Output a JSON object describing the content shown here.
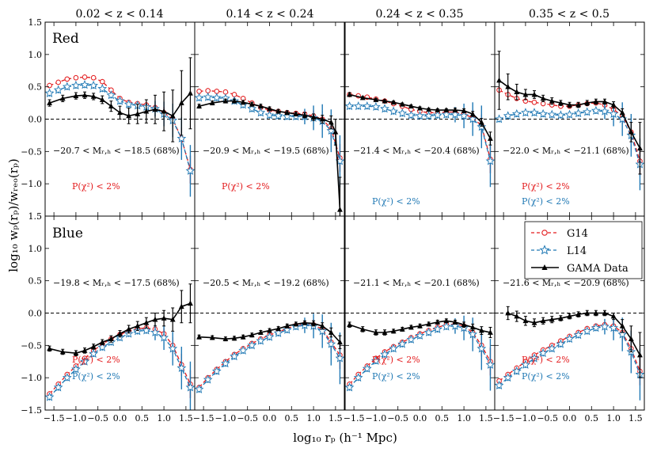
{
  "figure": {
    "xlabel": "log₁₀ rₚ (h⁻¹ Mpc)",
    "ylabel": "log₁₀ wₚ(rₚ)/wᵣₑₒ(rₚ)"
  },
  "columns": [
    "0.02 < z < 0.14",
    "0.14 < z < 0.24",
    "0.24 < z < 0.35",
    "0.35 < z < 0.5"
  ],
  "rows": [
    "Red",
    "Blue"
  ],
  "legend": {
    "g14": "G14",
    "l14": "L14",
    "gama": "GAMA Data"
  },
  "colors": {
    "g14": "#e31a1c",
    "l14": "#1f78b4",
    "gama": "#000000"
  },
  "panels_text": [
    {
      "row": 0,
      "col": 0,
      "mag": "−20.7 < Mᵣ,ₕ < −18.5 (68%)",
      "pchi_red": "P(χ²) < 2%",
      "pchi_blue": ""
    },
    {
      "row": 0,
      "col": 1,
      "mag": "−20.9 < Mᵣ,ₕ < −19.5 (68%)",
      "pchi_red": "P(χ²) < 2%",
      "pchi_blue": ""
    },
    {
      "row": 0,
      "col": 2,
      "mag": "−21.4 < Mᵣ,ₕ < −20.4 (68%)",
      "pchi_red": "",
      "pchi_blue": "P(χ²) < 2%"
    },
    {
      "row": 0,
      "col": 3,
      "mag": "−22.0 < Mᵣ,ₕ < −21.1 (68%)",
      "pchi_red": "P(χ²) < 2%",
      "pchi_blue": "P(χ²) < 2%"
    },
    {
      "row": 1,
      "col": 0,
      "mag": "−19.8 < Mᵣ,ₕ < −17.5 (68%)",
      "pchi_red": "P(χ²) < 2%",
      "pchi_blue": "P(χ²) < 2%"
    },
    {
      "row": 1,
      "col": 1,
      "mag": "−20.5 < Mᵣ,ₕ < −19.2 (68%)",
      "pchi_red": "",
      "pchi_blue": ""
    },
    {
      "row": 1,
      "col": 2,
      "mag": "−21.1 < Mᵣ,ₕ < −20.1 (68%)",
      "pchi_red": "P(χ²) < 2%",
      "pchi_blue": "P(χ²) < 2%"
    },
    {
      "row": 1,
      "col": 3,
      "mag": "−21.6 < Mᵣ,ₕ < −20.9 (68%)",
      "pchi_red": "P(χ²) < 2%",
      "pchi_blue": "P(χ²) < 2%"
    }
  ],
  "chart_data": {
    "type": "line",
    "xlim": [
      -1.7,
      1.7
    ],
    "ylim": [
      -1.5,
      1.5
    ],
    "xticks": [
      -1.5,
      -1.0,
      -0.5,
      0.0,
      0.5,
      1.0,
      1.5
    ],
    "xtick_labels": [
      "−1.5",
      "−1.0",
      "−0.5",
      "0.0",
      "0.5",
      "1.0",
      "1.5"
    ],
    "yticks": [
      -1.5,
      -1.0,
      -0.5,
      0.0,
      0.5,
      1.0,
      1.5
    ],
    "ytick_labels": [
      "−1.5",
      "−1.0",
      "−0.5",
      "0.0",
      "0.5",
      "1.0",
      "1.5"
    ],
    "reference_line": 0.0,
    "model_x": [
      -1.6,
      -1.4,
      -1.2,
      -1.0,
      -0.8,
      -0.6,
      -0.4,
      -0.2,
      0.0,
      0.2,
      0.4,
      0.6,
      0.8,
      1.0,
      1.2,
      1.4,
      1.6
    ],
    "panels": [
      {
        "row": 0,
        "col": 0,
        "G14": [
          0.52,
          0.57,
          0.62,
          0.64,
          0.65,
          0.64,
          0.58,
          0.45,
          0.32,
          0.26,
          0.24,
          0.22,
          0.18,
          0.1,
          0.0,
          -0.3,
          -0.78
        ],
        "L14": [
          0.4,
          0.45,
          0.5,
          0.52,
          0.53,
          0.52,
          0.47,
          0.37,
          0.28,
          0.23,
          0.21,
          0.19,
          0.16,
          0.08,
          -0.02,
          -0.3,
          -0.8
        ],
        "GAMA": {
          "x": [
            -1.6,
            -1.3,
            -1.0,
            -0.8,
            -0.6,
            -0.4,
            -0.2,
            0.0,
            0.2,
            0.4,
            0.6,
            0.8,
            1.0,
            1.2,
            1.4,
            1.6
          ],
          "y": [
            0.25,
            0.32,
            0.36,
            0.37,
            0.35,
            0.3,
            0.2,
            0.1,
            0.05,
            0.08,
            0.12,
            0.15,
            0.12,
            0.05,
            0.25,
            0.4
          ],
          "err": [
            0.05,
            0.05,
            0.05,
            0.05,
            0.05,
            0.06,
            0.08,
            0.1,
            0.12,
            0.15,
            0.18,
            0.22,
            0.3,
            0.4,
            0.5,
            0.55
          ]
        }
      },
      {
        "row": 0,
        "col": 1,
        "G14": [
          0.43,
          0.44,
          0.43,
          0.42,
          0.38,
          0.32,
          0.25,
          0.18,
          0.14,
          0.12,
          0.1,
          0.09,
          0.08,
          0.05,
          0.0,
          -0.15,
          -0.6
        ],
        "L14": [
          0.33,
          0.34,
          0.33,
          0.32,
          0.28,
          0.22,
          0.16,
          0.1,
          0.06,
          0.05,
          0.04,
          0.04,
          0.04,
          0.02,
          -0.03,
          -0.18,
          -0.65
        ],
        "GAMA": {
          "x": [
            -1.6,
            -1.3,
            -1.0,
            -0.8,
            -0.6,
            -0.4,
            -0.2,
            0.0,
            0.2,
            0.4,
            0.6,
            0.8,
            1.0,
            1.2,
            1.4,
            1.5,
            1.6
          ],
          "y": [
            0.2,
            0.25,
            0.28,
            0.28,
            0.26,
            0.23,
            0.2,
            0.16,
            0.12,
            0.1,
            0.08,
            0.06,
            0.03,
            0.0,
            -0.05,
            -0.2,
            -1.4
          ],
          "err": [
            0.03,
            0.03,
            0.03,
            0.03,
            0.03,
            0.03,
            0.03,
            0.03,
            0.03,
            0.03,
            0.03,
            0.04,
            0.05,
            0.06,
            0.1,
            0.2,
            0.5
          ]
        }
      },
      {
        "row": 0,
        "col": 2,
        "G14": [
          0.38,
          0.36,
          0.34,
          0.31,
          0.28,
          0.24,
          0.2,
          0.15,
          0.12,
          0.1,
          0.1,
          0.11,
          0.11,
          0.08,
          0.02,
          -0.1,
          -0.62
        ],
        "L14": [
          0.2,
          0.2,
          0.2,
          0.19,
          0.16,
          0.12,
          0.09,
          0.06,
          0.05,
          0.05,
          0.06,
          0.07,
          0.07,
          0.05,
          0.0,
          -0.12,
          -0.65
        ],
        "GAMA": {
          "x": [
            -1.6,
            -1.3,
            -1.0,
            -0.8,
            -0.6,
            -0.4,
            -0.2,
            0.0,
            0.2,
            0.4,
            0.6,
            0.8,
            1.0,
            1.2,
            1.4,
            1.6
          ],
          "y": [
            0.38,
            0.33,
            0.3,
            0.28,
            0.26,
            0.23,
            0.2,
            0.17,
            0.15,
            0.14,
            0.14,
            0.14,
            0.13,
            0.08,
            -0.05,
            -0.3
          ],
          "err": [
            0.03,
            0.02,
            0.02,
            0.02,
            0.02,
            0.02,
            0.02,
            0.02,
            0.02,
            0.02,
            0.02,
            0.03,
            0.03,
            0.04,
            0.06,
            0.1
          ]
        }
      },
      {
        "row": 0,
        "col": 3,
        "G14": [
          0.45,
          0.38,
          0.32,
          0.28,
          0.26,
          0.24,
          0.22,
          0.2,
          0.2,
          0.22,
          0.24,
          0.25,
          0.22,
          0.15,
          0.05,
          -0.2,
          -0.65
        ],
        "L14": [
          0.0,
          0.05,
          0.08,
          0.1,
          0.1,
          0.08,
          0.07,
          0.06,
          0.07,
          0.09,
          0.11,
          0.13,
          0.12,
          0.08,
          0.0,
          -0.25,
          -0.7
        ],
        "GAMA": {
          "x": [
            -1.6,
            -1.4,
            -1.2,
            -1.0,
            -0.8,
            -0.6,
            -0.4,
            -0.2,
            0.0,
            0.2,
            0.4,
            0.6,
            0.8,
            1.0,
            1.2,
            1.4,
            1.6
          ],
          "y": [
            0.6,
            0.5,
            0.42,
            0.38,
            0.38,
            0.32,
            0.28,
            0.25,
            0.22,
            0.22,
            0.25,
            0.27,
            0.27,
            0.22,
            0.1,
            -0.2,
            -0.45
          ],
          "err": [
            0.45,
            0.2,
            0.12,
            0.08,
            0.06,
            0.05,
            0.05,
            0.04,
            0.04,
            0.04,
            0.04,
            0.04,
            0.04,
            0.05,
            0.06,
            0.15,
            0.4
          ]
        }
      },
      {
        "row": 1,
        "col": 0,
        "G14": [
          -1.25,
          -1.1,
          -0.95,
          -0.82,
          -0.7,
          -0.58,
          -0.48,
          -0.4,
          -0.33,
          -0.28,
          -0.24,
          -0.23,
          -0.25,
          -0.32,
          -0.5,
          -0.8,
          -1.1
        ],
        "L14": [
          -1.3,
          -1.15,
          -1.0,
          -0.87,
          -0.75,
          -0.63,
          -0.53,
          -0.45,
          -0.38,
          -0.32,
          -0.28,
          -0.27,
          -0.3,
          -0.38,
          -0.55,
          -0.85,
          -1.15
        ],
        "GAMA": {
          "x": [
            -1.6,
            -1.3,
            -1.0,
            -0.8,
            -0.6,
            -0.4,
            -0.2,
            0.0,
            0.2,
            0.4,
            0.6,
            0.8,
            1.0,
            1.2,
            1.4,
            1.6
          ],
          "y": [
            -0.55,
            -0.6,
            -0.62,
            -0.58,
            -0.52,
            -0.45,
            -0.4,
            -0.32,
            -0.25,
            -0.2,
            -0.15,
            -0.1,
            -0.08,
            -0.1,
            0.1,
            0.15
          ],
          "err": [
            0.04,
            0.04,
            0.04,
            0.04,
            0.04,
            0.04,
            0.05,
            0.05,
            0.06,
            0.07,
            0.08,
            0.1,
            0.12,
            0.18,
            0.25,
            0.3
          ]
        }
      },
      {
        "row": 1,
        "col": 1,
        "G14": [
          -1.15,
          -1.0,
          -0.87,
          -0.75,
          -0.64,
          -0.55,
          -0.47,
          -0.4,
          -0.34,
          -0.29,
          -0.24,
          -0.19,
          -0.17,
          -0.18,
          -0.25,
          -0.45,
          -0.65
        ],
        "L14": [
          -1.18,
          -1.03,
          -0.9,
          -0.78,
          -0.67,
          -0.58,
          -0.5,
          -0.43,
          -0.37,
          -0.31,
          -0.26,
          -0.21,
          -0.19,
          -0.2,
          -0.28,
          -0.48,
          -0.7
        ],
        "GAMA": {
          "x": [
            -1.6,
            -1.3,
            -1.0,
            -0.8,
            -0.6,
            -0.4,
            -0.2,
            0.0,
            0.2,
            0.4,
            0.6,
            0.8,
            1.0,
            1.2,
            1.4,
            1.6
          ],
          "y": [
            -0.37,
            -0.38,
            -0.4,
            -0.39,
            -0.37,
            -0.34,
            -0.3,
            -0.27,
            -0.24,
            -0.2,
            -0.17,
            -0.15,
            -0.16,
            -0.2,
            -0.3,
            -0.45
          ],
          "err": [
            0.03,
            0.03,
            0.03,
            0.03,
            0.03,
            0.03,
            0.03,
            0.03,
            0.03,
            0.03,
            0.03,
            0.03,
            0.04,
            0.05,
            0.07,
            0.1
          ]
        }
      },
      {
        "row": 1,
        "col": 2,
        "G14": [
          -1.1,
          -0.95,
          -0.82,
          -0.7,
          -0.6,
          -0.52,
          -0.45,
          -0.38,
          -0.32,
          -0.27,
          -0.22,
          -0.18,
          -0.17,
          -0.2,
          -0.3,
          -0.5,
          -0.75
        ],
        "L14": [
          -1.15,
          -1.0,
          -0.86,
          -0.74,
          -0.64,
          -0.55,
          -0.48,
          -0.41,
          -0.35,
          -0.3,
          -0.25,
          -0.21,
          -0.2,
          -0.23,
          -0.33,
          -0.55,
          -0.8
        ],
        "GAMA": {
          "x": [
            -1.6,
            -1.3,
            -1.0,
            -0.8,
            -0.6,
            -0.4,
            -0.2,
            0.0,
            0.2,
            0.4,
            0.6,
            0.8,
            1.0,
            1.2,
            1.4,
            1.6
          ],
          "y": [
            -0.18,
            -0.25,
            -0.3,
            -0.3,
            -0.28,
            -0.25,
            -0.22,
            -0.2,
            -0.17,
            -0.14,
            -0.12,
            -0.14,
            -0.18,
            -0.22,
            -0.27,
            -0.3
          ],
          "err": [
            0.04,
            0.04,
            0.04,
            0.04,
            0.03,
            0.03,
            0.03,
            0.03,
            0.03,
            0.03,
            0.03,
            0.03,
            0.04,
            0.05,
            0.06,
            0.08
          ]
        }
      },
      {
        "row": 1,
        "col": 3,
        "G14": [
          -1.05,
          -0.95,
          -0.85,
          -0.75,
          -0.65,
          -0.57,
          -0.5,
          -0.43,
          -0.36,
          -0.3,
          -0.24,
          -0.2,
          -0.18,
          -0.2,
          -0.3,
          -0.55,
          -0.9
        ],
        "L14": [
          -1.12,
          -1.0,
          -0.9,
          -0.8,
          -0.7,
          -0.62,
          -0.55,
          -0.48,
          -0.4,
          -0.34,
          -0.28,
          -0.23,
          -0.21,
          -0.23,
          -0.33,
          -0.6,
          -0.95
        ],
        "GAMA": {
          "x": [
            -1.4,
            -1.2,
            -1.0,
            -0.8,
            -0.6,
            -0.4,
            -0.2,
            0.0,
            0.2,
            0.4,
            0.6,
            0.8,
            1.0,
            1.2,
            1.4,
            1.6
          ],
          "y": [
            0.0,
            -0.05,
            -0.12,
            -0.15,
            -0.12,
            -0.1,
            -0.08,
            -0.05,
            -0.02,
            0.0,
            0.0,
            0.0,
            -0.05,
            -0.2,
            -0.4,
            -0.65
          ],
          "err": [
            0.1,
            0.08,
            0.07,
            0.06,
            0.05,
            0.05,
            0.04,
            0.04,
            0.04,
            0.04,
            0.04,
            0.04,
            0.05,
            0.1,
            0.2,
            0.35
          ]
        }
      }
    ]
  }
}
